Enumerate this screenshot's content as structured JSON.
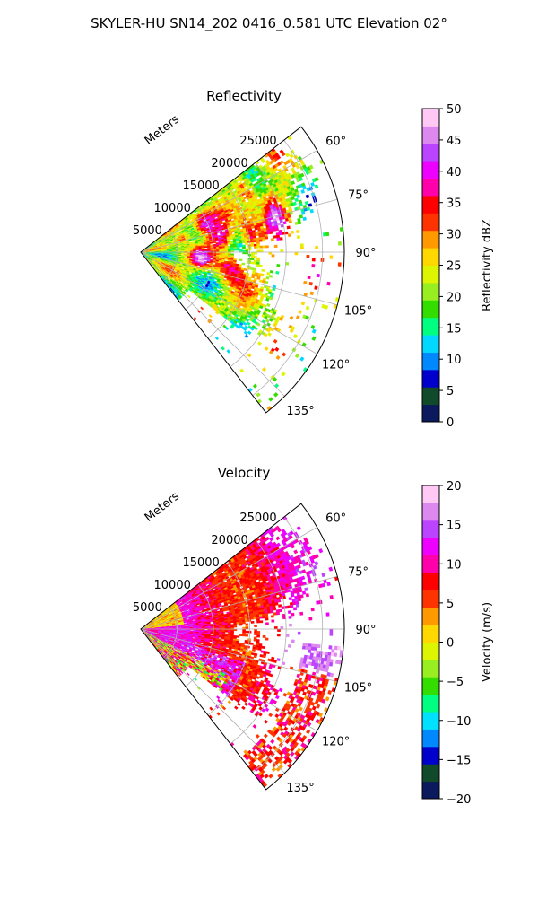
{
  "figure": {
    "title": "SKYLER-HU  SN14_202  0416_0.581 UTC Elevation 02°"
  },
  "chart_data": [
    {
      "type": "heatmap",
      "projection": "polar-sector",
      "title": "Reflectivity",
      "radial_axis_label": "Meters",
      "radial_ticks": [
        5000,
        10000,
        15000,
        20000,
        25000
      ],
      "radial_range": [
        0,
        28000
      ],
      "azimuth_range_deg": [
        52,
        142
      ],
      "azimuth_ticks": [
        "60°",
        "75°",
        "90°",
        "105°",
        "120°",
        "135°"
      ],
      "grid": true,
      "colorbar": {
        "label": "Reflectivity dBZ",
        "min": 0,
        "max": 50,
        "ticks": [
          "0",
          "5",
          "10",
          "15",
          "20",
          "25",
          "30",
          "35",
          "40",
          "45",
          "50"
        ]
      },
      "colors": [
        "#0a1a5c",
        "#104a2a",
        "#0000cc",
        "#0088ff",
        "#00d8ff",
        "#00ff80",
        "#33dd00",
        "#99ee22",
        "#ddf500",
        "#ffd800",
        "#ff9900",
        "#ff3300",
        "#ff0000",
        "#ff00aa",
        "#ee00ff",
        "#bb44ff",
        "#dd88ee",
        "#ffc8f5"
      ],
      "summary": {
        "dominant_range_dbz": [
          15,
          30
        ],
        "cores_dbz": [
          35,
          45
        ]
      }
    },
    {
      "type": "heatmap",
      "projection": "polar-sector",
      "title": "Velocity",
      "radial_axis_label": "Meters",
      "radial_ticks": [
        5000,
        10000,
        15000,
        20000,
        25000
      ],
      "radial_range": [
        0,
        28000
      ],
      "azimuth_range_deg": [
        52,
        142
      ],
      "azimuth_ticks": [
        "60°",
        "75°",
        "90°",
        "105°",
        "120°",
        "135°"
      ],
      "grid": true,
      "colorbar": {
        "label": "Velocity (m/s)",
        "min": -20,
        "max": 20,
        "ticks": [
          "−20",
          "−15",
          "−10",
          "−5",
          "0",
          "5",
          "10",
          "15",
          "20"
        ]
      },
      "colors": [
        "#0a1a5c",
        "#104a2a",
        "#0000cc",
        "#0088ff",
        "#00e0ff",
        "#00ff80",
        "#33dd00",
        "#99ee22",
        "#ddf500",
        "#ffd800",
        "#ff9900",
        "#ff3300",
        "#ff0000",
        "#ff00aa",
        "#ee00ff",
        "#bb44ff",
        "#dd88ee",
        "#ffc8f5"
      ],
      "summary": {
        "dominant_range_ms": [
          5,
          15
        ]
      }
    }
  ]
}
